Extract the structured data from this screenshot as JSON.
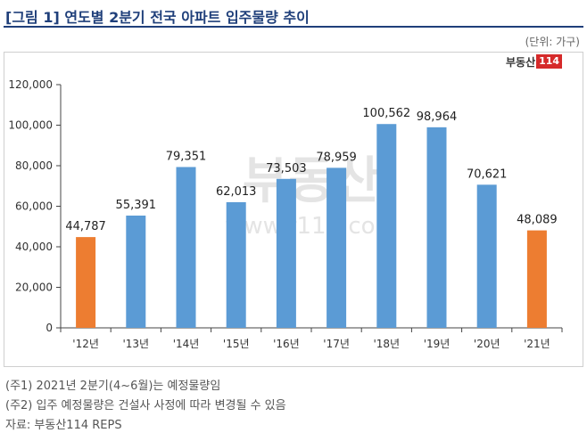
{
  "title": "[그림 1] 연도별 2분기 전국 아파트 입주물량 추이",
  "unit": "(단위: 가구)",
  "logo": {
    "text": "부동산",
    "box": "114"
  },
  "watermark": {
    "main": "부동산",
    "sub": "www.r114.com"
  },
  "notes": [
    "(주1) 2021년 2분기(4~6월)는 예정물량임",
    "(주2) 입주 예정물량은 건설사 사정에 따라 변경될 수 있음",
    "자료: 부동산114 REPS"
  ],
  "colors": {
    "title": "#1f3f7a",
    "bar": "#5b9bd5",
    "highlight": "#ed7d31",
    "logo_box": "#d62a2a"
  },
  "chart_data": {
    "type": "bar",
    "categories": [
      "'12년",
      "'13년",
      "'14년",
      "'15년",
      "'16년",
      "'17년",
      "'18년",
      "'19년",
      "'20년",
      "'21년"
    ],
    "values": [
      44787,
      55391,
      79351,
      62013,
      73503,
      78959,
      100562,
      98964,
      70621,
      48089
    ],
    "data_labels": [
      "44,787",
      "55,391",
      "79,351",
      "62,013",
      "73,503",
      "78,959",
      "100,562",
      "98,964",
      "70,621",
      "48,089"
    ],
    "highlighted": [
      "'12년",
      "'21년"
    ],
    "ylim": [
      0,
      120000
    ],
    "yticks": [
      0,
      20000,
      40000,
      60000,
      80000,
      100000,
      120000
    ],
    "ytick_labels": [
      "0",
      "20,000",
      "40,000",
      "60,000",
      "80,000",
      "100,000",
      "120,000"
    ],
    "title": "",
    "xlabel": "",
    "ylabel": "",
    "grid": false,
    "legend": "none"
  }
}
